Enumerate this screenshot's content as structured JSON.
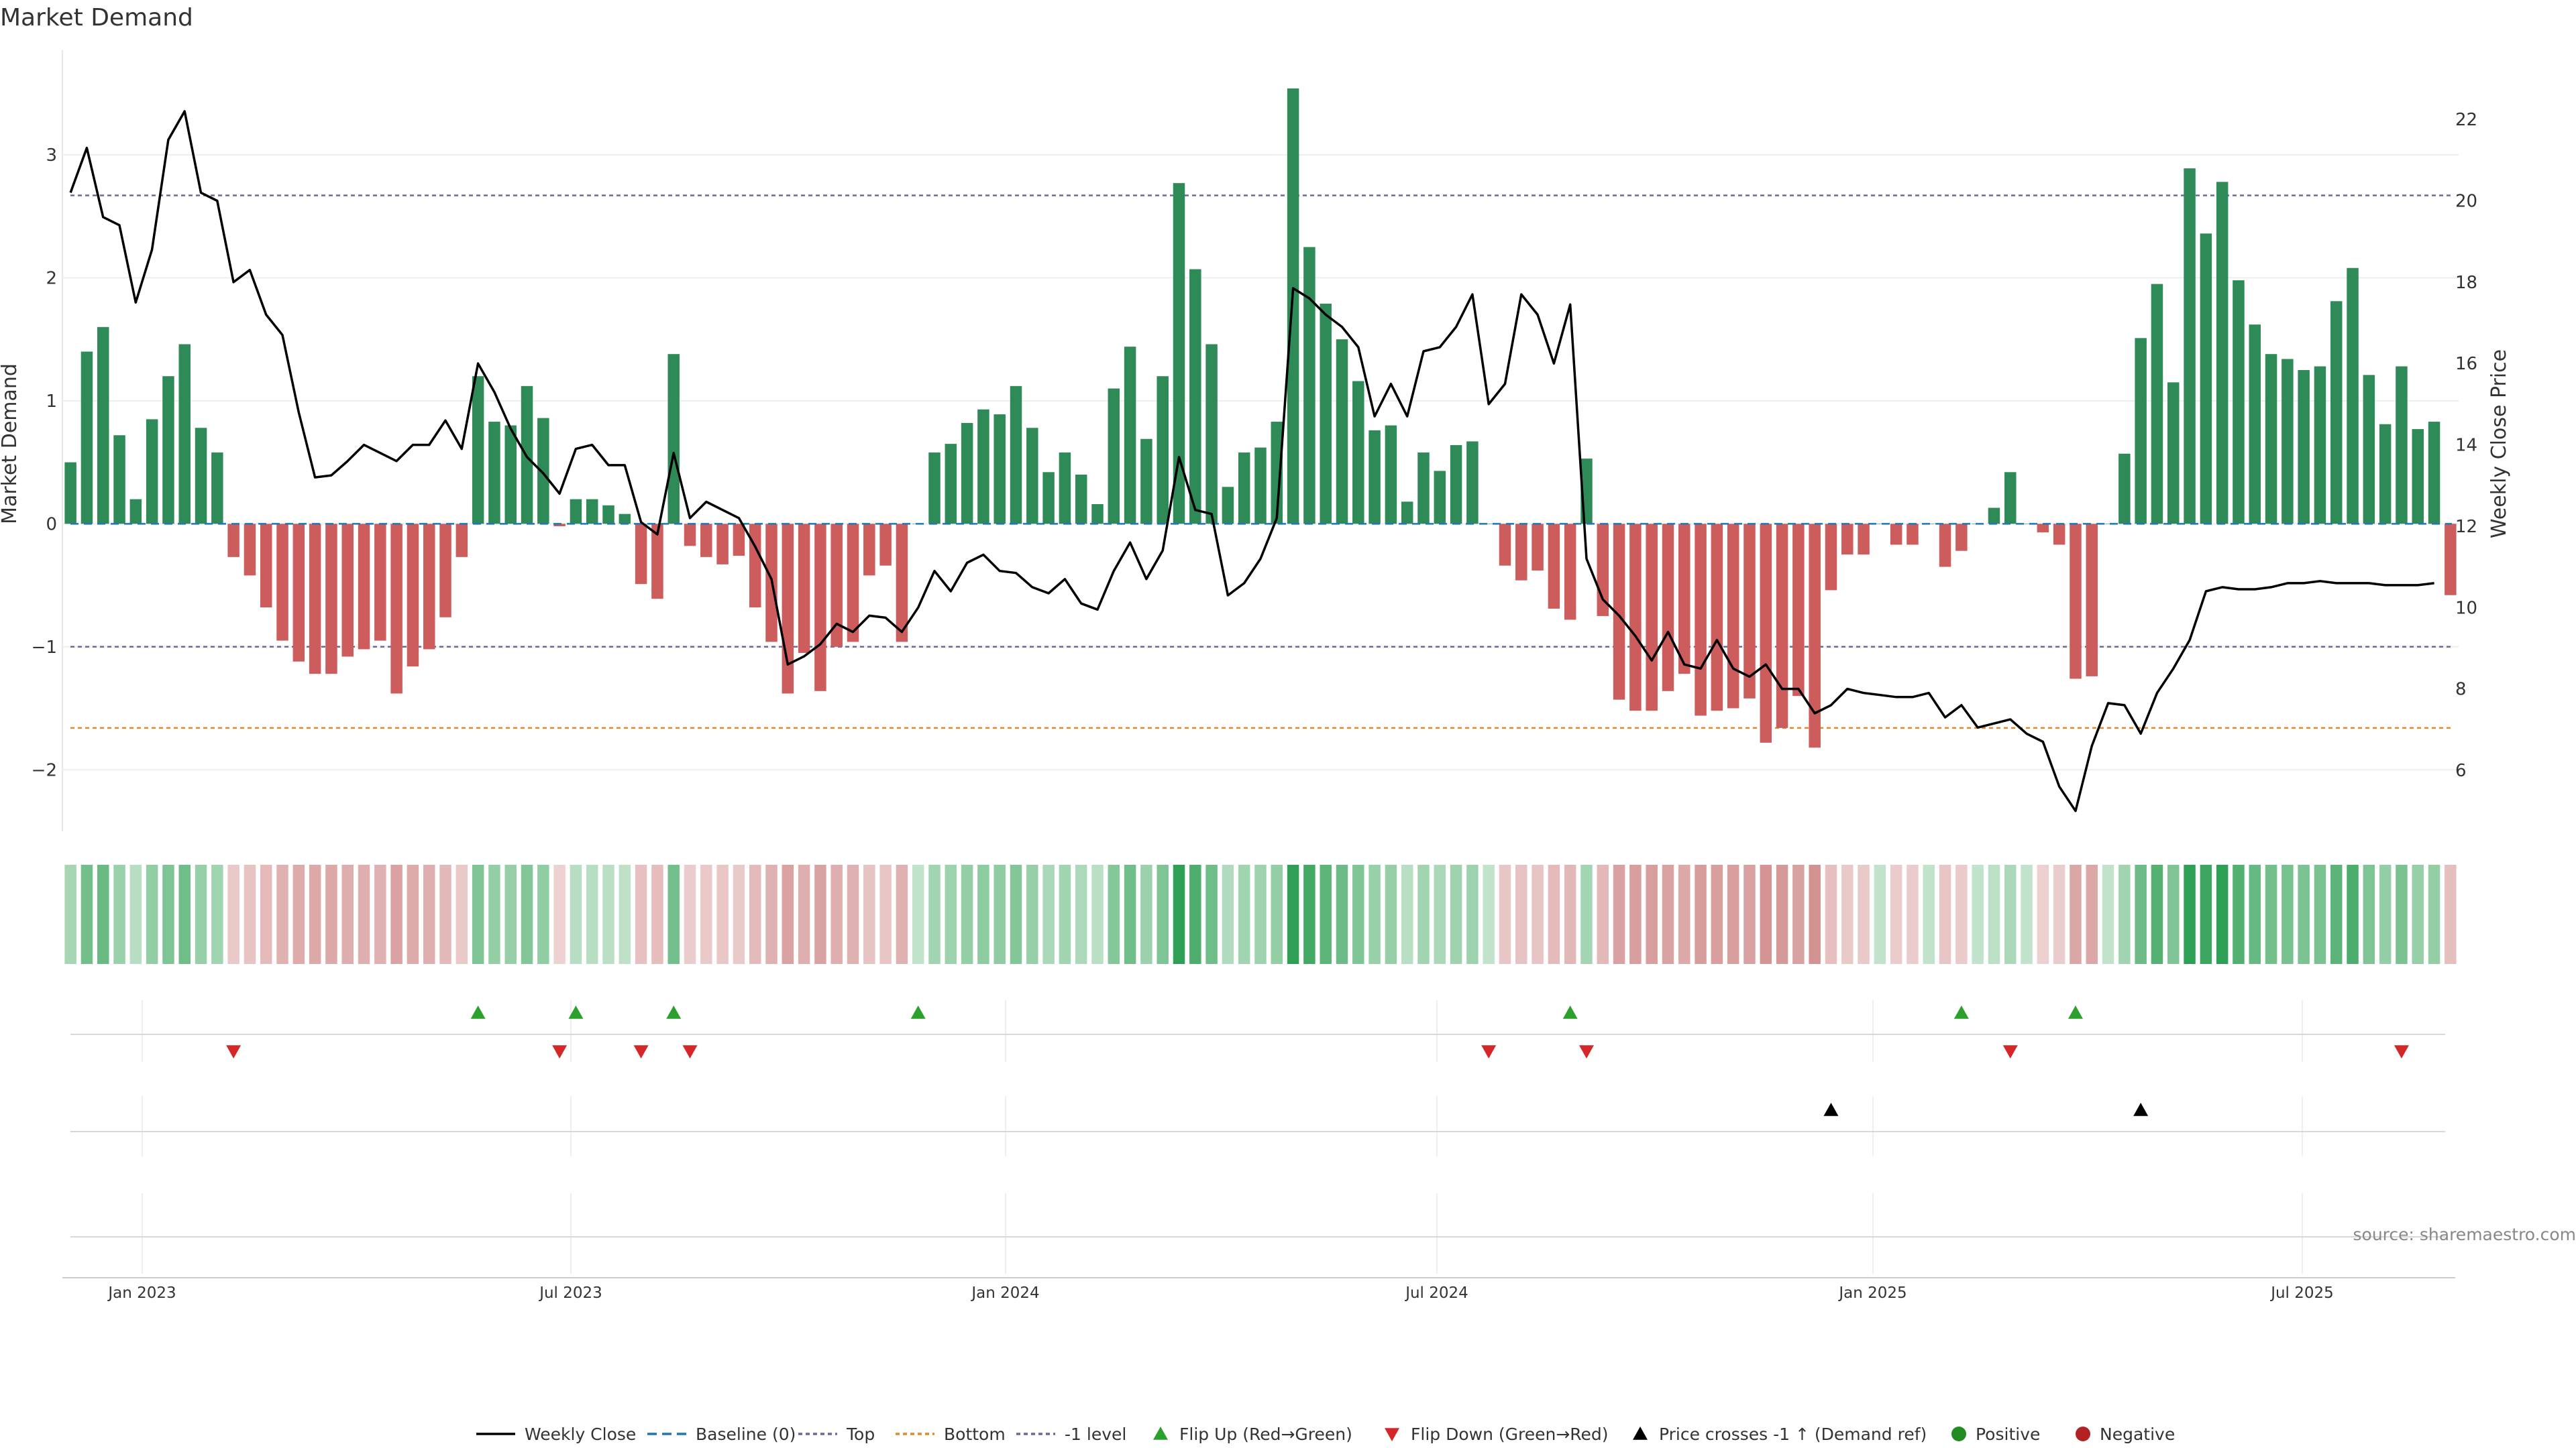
{
  "chart_data": {
    "type": "bar",
    "title": "Market Demand",
    "ylabel_left": "Market Demand",
    "ylabel_right": "Weekly Close Price",
    "source": "source: sharemaestro.com",
    "x_ticks": [
      "Jan 2023",
      "Jul 2023",
      "Jan 2024",
      "Jul 2024",
      "Jan 2025",
      "Jul 2025"
    ],
    "y_left_ticks": [
      -2,
      -1,
      0,
      1,
      2,
      3
    ],
    "y_left_range": [
      -2.5,
      3.85
    ],
    "y_right_ticks": [
      6,
      8,
      10,
      12,
      14,
      16,
      18,
      20,
      22
    ],
    "y_right_range": [
      4.5,
      23.7
    ],
    "reference_lines": {
      "top": 2.67,
      "minus_one": -1.0,
      "bottom": -1.66,
      "baseline": 0
    },
    "colors": {
      "positive": "#2e8b57",
      "negative": "#cd5c5c",
      "price": "#000000",
      "top_line": "#6a6a9a",
      "bottom_line": "#e08a2a",
      "baseline": "#1f77b4",
      "flip_up": "#2ca02c",
      "flip_down": "#d62728"
    },
    "demand_values": [
      0.5,
      1.4,
      1.6,
      0.72,
      0.2,
      0.85,
      1.2,
      1.46,
      0.78,
      0.58,
      -0.27,
      -0.42,
      -0.68,
      -0.95,
      -1.12,
      -1.22,
      -1.22,
      -1.08,
      -1.02,
      -0.95,
      -1.38,
      -1.16,
      -1.02,
      -0.76,
      -0.27,
      1.2,
      0.83,
      0.8,
      1.12,
      0.86,
      -0.02,
      0.2,
      0.2,
      0.15,
      0.08,
      -0.49,
      -0.61,
      1.38,
      -0.18,
      -0.27,
      -0.33,
      -0.26,
      -0.68,
      -0.96,
      -1.38,
      -1.05,
      -1.36,
      -1.0,
      -0.96,
      -0.42,
      -0.34,
      -0.96,
      0.0,
      0.58,
      0.65,
      0.82,
      0.93,
      0.89,
      1.12,
      0.78,
      0.42,
      0.58,
      0.4,
      0.16,
      1.1,
      1.44,
      0.69,
      1.2,
      2.77,
      2.07,
      1.46,
      0.3,
      0.58,
      0.62,
      0.83,
      3.54,
      2.25,
      1.79,
      1.5,
      1.16,
      0.76,
      0.8,
      0.18,
      0.58,
      0.43,
      0.64,
      0.67,
      0.0,
      -0.34,
      -0.46,
      -0.38,
      -0.69,
      -0.78,
      0.53,
      -0.75,
      -1.43,
      -1.52,
      -1.52,
      -1.36,
      -1.22,
      -1.56,
      -1.52,
      -1.5,
      -1.42,
      -1.78,
      -1.66,
      -1.4,
      -1.82,
      -0.54,
      -0.25,
      -0.25,
      0.0,
      -0.17,
      -0.17,
      0.0,
      -0.35,
      -0.22,
      0.0,
      0.13,
      0.42,
      0.0,
      -0.07,
      -0.17,
      -1.26,
      -1.24,
      0.0,
      0.57,
      1.51,
      1.95,
      1.15,
      2.89,
      2.36,
      2.78,
      1.98,
      1.62,
      1.38,
      1.34,
      1.25,
      1.28,
      1.81,
      2.08,
      1.21,
      0.81,
      1.28,
      0.77,
      0.83,
      -0.58
    ],
    "price_values": [
      20.2,
      21.3,
      19.6,
      19.4,
      17.5,
      18.8,
      21.5,
      22.2,
      20.2,
      20.0,
      18.0,
      18.3,
      17.2,
      16.7,
      14.8,
      13.2,
      13.25,
      13.6,
      14.0,
      13.8,
      13.6,
      14.0,
      14.0,
      14.6,
      13.9,
      16.0,
      15.3,
      14.4,
      13.7,
      13.3,
      12.8,
      13.9,
      14.0,
      13.5,
      13.5,
      12.1,
      11.8,
      13.8,
      12.2,
      12.6,
      12.4,
      12.2,
      11.5,
      10.7,
      8.6,
      8.8,
      9.1,
      9.6,
      9.4,
      9.8,
      9.75,
      9.4,
      10.0,
      10.9,
      10.4,
      11.1,
      11.3,
      10.9,
      10.85,
      10.5,
      10.35,
      10.7,
      10.1,
      9.95,
      10.9,
      11.6,
      10.7,
      11.4,
      13.7,
      12.4,
      12.3,
      10.3,
      10.6,
      11.2,
      12.2,
      17.85,
      17.6,
      17.2,
      16.9,
      16.4,
      14.7,
      15.5,
      14.7,
      16.3,
      16.4,
      16.9,
      17.7,
      15.0,
      15.5,
      17.7,
      17.2,
      16.0,
      17.45,
      11.2,
      10.2,
      9.8,
      9.3,
      8.7,
      9.4,
      8.6,
      8.5,
      9.2,
      8.5,
      8.3,
      8.6,
      8.0,
      8.0,
      7.4,
      7.6,
      8.0,
      7.9,
      7.85,
      7.8,
      7.8,
      7.9,
      7.3,
      7.6,
      7.05,
      7.15,
      7.25,
      6.9,
      6.7,
      5.6,
      5.0,
      6.6,
      7.65,
      7.6,
      6.9,
      7.9,
      8.5,
      9.2,
      10.4,
      10.5,
      10.45,
      10.45,
      10.5,
      10.6,
      10.6,
      10.65,
      10.6,
      10.6,
      10.6,
      10.55,
      10.55,
      10.55,
      10.6
    ],
    "flip_up_index": [
      25,
      31,
      37,
      52,
      92,
      116,
      123
    ],
    "flip_down_index": [
      10,
      30,
      35,
      38,
      87,
      93,
      119,
      143
    ],
    "price_cross_index": [
      108,
      127
    ],
    "legend": [
      "Weekly Close",
      "Baseline (0)",
      "Top",
      "Bottom",
      "-1 level",
      "Flip Up (Red→Green)",
      "Flip Down (Green→Red)",
      "Price crosses -1 ↑ (Demand ref)",
      "Positive",
      "Negative"
    ]
  }
}
